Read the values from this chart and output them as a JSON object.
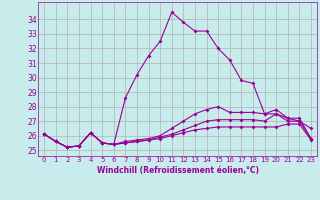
{
  "xlabel": "Windchill (Refroidissement éolien,°C)",
  "x": [
    0,
    1,
    2,
    3,
    4,
    5,
    6,
    7,
    8,
    9,
    10,
    11,
    12,
    13,
    14,
    15,
    16,
    17,
    18,
    19,
    20,
    21,
    22,
    23
  ],
  "line1": [
    26.1,
    25.6,
    25.2,
    25.3,
    26.2,
    25.5,
    25.4,
    28.6,
    30.2,
    31.5,
    32.5,
    34.5,
    33.8,
    33.2,
    33.2,
    32.0,
    31.2,
    29.8,
    29.6,
    27.5,
    27.5,
    27.2,
    27.0,
    26.5
  ],
  "line2": [
    26.1,
    25.6,
    25.2,
    25.3,
    26.2,
    25.5,
    25.4,
    25.6,
    25.7,
    25.8,
    26.0,
    26.5,
    27.0,
    27.5,
    27.8,
    28.0,
    27.6,
    27.6,
    27.6,
    27.5,
    27.8,
    27.2,
    27.2,
    25.8
  ],
  "line3": [
    26.1,
    25.6,
    25.2,
    25.3,
    26.2,
    25.5,
    25.4,
    25.5,
    25.6,
    25.7,
    25.9,
    26.1,
    26.4,
    26.7,
    27.0,
    27.1,
    27.1,
    27.1,
    27.1,
    27.0,
    27.5,
    27.0,
    27.0,
    25.8
  ],
  "line4": [
    26.1,
    25.6,
    25.2,
    25.3,
    26.2,
    25.5,
    25.4,
    25.5,
    25.6,
    25.7,
    25.8,
    26.0,
    26.2,
    26.4,
    26.5,
    26.6,
    26.6,
    26.6,
    26.6,
    26.6,
    26.6,
    26.8,
    26.8,
    25.7
  ],
  "line_color": "#990099",
  "bg_color": "#c8ecec",
  "grid_color": "#b0b0b0",
  "ylim": [
    24.6,
    35.2
  ],
  "yticks": [
    25,
    26,
    27,
    28,
    29,
    30,
    31,
    32,
    33,
    34
  ],
  "xticks": [
    0,
    1,
    2,
    3,
    4,
    5,
    6,
    7,
    8,
    9,
    10,
    11,
    12,
    13,
    14,
    15,
    16,
    17,
    18,
    19,
    20,
    21,
    22,
    23
  ]
}
